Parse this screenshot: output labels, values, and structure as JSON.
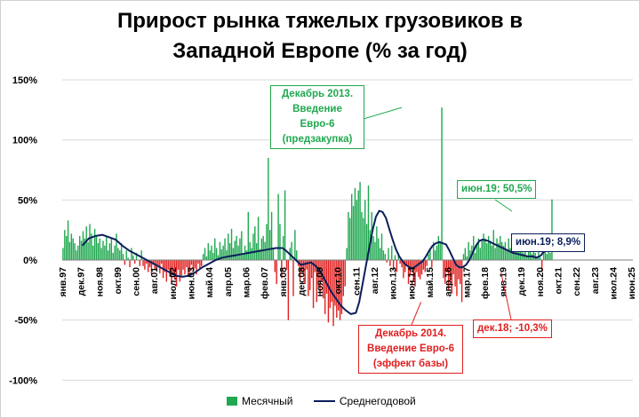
{
  "title_line1": "Прирост рынка тяжелых грузовиков в",
  "title_line2": "Западной Европе (% за год)",
  "legend": {
    "bars": "Месячный",
    "line": "Среднегодовой"
  },
  "colors": {
    "pos_bar": "#1fa84f",
    "neg_bar": "#e02020",
    "line": "#0b1f5c",
    "grid": "#d9d9d9"
  },
  "annotations": {
    "dec2013": [
      "Декабрь 2013.",
      "Введение Евро-6",
      "(предзакупка)"
    ],
    "dec2014": [
      "Декабрь 2014.",
      "Введение Евро-6",
      "(эффект базы)"
    ],
    "jun19_monthly": "июн.19; 50,5%",
    "jun19_avg": "июн.19; 8,9%",
    "dec18": "дек.18; -10,3%"
  },
  "chart_data": {
    "type": "bar+line",
    "title": "Прирост рынка тяжелых грузовиков в Западной Европе (% за год)",
    "ylim": [
      -100,
      150
    ],
    "yticks": [
      -100,
      -50,
      0,
      50,
      100,
      150
    ],
    "ytick_labels": [
      "-100%",
      "-50%",
      "0%",
      "50%",
      "100%",
      "150%"
    ],
    "x_start": "янв.97",
    "x_months": 342,
    "xtick_labels": [
      "янв.97",
      "дек.97",
      "ноя.98",
      "окт.99",
      "сен.00",
      "авг.01",
      "июл.02",
      "июн.03",
      "май.04",
      "апр.05",
      "мар.06",
      "фев.07",
      "янв.08",
      "дек.08",
      "ноя.09",
      "окт.10",
      "сен.11",
      "авг.12",
      "июл.13",
      "июн.14",
      "май.15",
      "апр.16",
      "мар.17",
      "фев.18",
      "янв.19",
      "дек.19",
      "ноя.20",
      "окт.21",
      "сен.22",
      "авг.23",
      "июл.24",
      "июн.25"
    ],
    "series": [
      {
        "name": "Месячный",
        "kind": "bar",
        "monthly_values": [
          10,
          25,
          20,
          33,
          15,
          22,
          18,
          14,
          8,
          12,
          20,
          16,
          24,
          18,
          28,
          15,
          30,
          22,
          12,
          26,
          20,
          14,
          18,
          10,
          16,
          12,
          20,
          8,
          14,
          18,
          6,
          12,
          22,
          10,
          8,
          14,
          5,
          -4,
          8,
          2,
          -6,
          10,
          4,
          -3,
          6,
          0,
          -5,
          8,
          -5,
          -8,
          -3,
          -10,
          -6,
          -12,
          -4,
          -8,
          -9,
          -6,
          -11,
          -3,
          -15,
          -10,
          -18,
          -8,
          -14,
          -20,
          -12,
          -16,
          -22,
          -8,
          -18,
          -13,
          -8,
          -12,
          -6,
          -14,
          -10,
          -4,
          -9,
          -7,
          -12,
          -3,
          -8,
          -5,
          5,
          10,
          3,
          14,
          8,
          12,
          6,
          18,
          10,
          4,
          15,
          9,
          12,
          18,
          8,
          22,
          14,
          26,
          10,
          16,
          20,
          12,
          18,
          24,
          5,
          12,
          8,
          40,
          15,
          10,
          22,
          28,
          14,
          36,
          9,
          18,
          20,
          15,
          30,
          85,
          25,
          40,
          10,
          -10,
          -20,
          55,
          30,
          -15,
          20,
          58,
          -8,
          -50,
          10,
          15,
          -30,
          25,
          8,
          -5,
          -18,
          -10,
          -12,
          -20,
          -8,
          -30,
          -25,
          -15,
          -40,
          -10,
          -35,
          -22,
          -28,
          -18,
          -32,
          -45,
          -28,
          -52,
          -40,
          -35,
          -55,
          -38,
          -48,
          -42,
          -50,
          -45,
          -30,
          -22,
          10,
          40,
          35,
          55,
          45,
          60,
          50,
          58,
          65,
          40,
          35,
          50,
          30,
          62,
          25,
          40,
          20,
          15,
          28,
          18,
          10,
          22,
          8,
          5,
          -2,
          10,
          -5,
          12,
          -8,
          4,
          -10,
          6,
          -3,
          -6,
          -15,
          -10,
          -5,
          -20,
          -12,
          -8,
          -18,
          -22,
          -10,
          -14,
          -16,
          -12,
          -8,
          -10,
          -5,
          5,
          10,
          -6,
          15,
          8,
          12,
          20,
          15,
          127,
          -15,
          -20,
          -10,
          -25,
          -18,
          -28,
          -12,
          -22,
          -30,
          -16,
          -20,
          -35,
          5,
          10,
          3,
          15,
          8,
          12,
          20,
          6,
          14,
          18,
          10,
          16,
          22,
          18,
          14,
          20,
          16,
          12,
          25,
          10,
          18,
          14,
          20,
          15,
          12,
          15,
          8,
          18,
          10,
          14,
          6,
          16,
          12,
          8,
          14,
          10,
          6,
          10,
          4,
          12,
          8,
          5,
          10,
          6,
          3,
          8,
          2,
          -10,
          8,
          12,
          5,
          10,
          6,
          50.5
        ]
      },
      {
        "name": "Среднегодовой",
        "kind": "line",
        "points": [
          [
            12,
            12
          ],
          [
            16,
            18
          ],
          [
            20,
            20
          ],
          [
            24,
            21
          ],
          [
            28,
            19
          ],
          [
            32,
            17
          ],
          [
            36,
            12
          ],
          [
            40,
            8
          ],
          [
            44,
            5
          ],
          [
            48,
            2
          ],
          [
            52,
            -1
          ],
          [
            56,
            -4
          ],
          [
            60,
            -7
          ],
          [
            64,
            -10
          ],
          [
            68,
            -13
          ],
          [
            72,
            -14
          ],
          [
            76,
            -13
          ],
          [
            80,
            -10
          ],
          [
            84,
            -6
          ],
          [
            88,
            -3
          ],
          [
            92,
            0
          ],
          [
            96,
            2
          ],
          [
            100,
            3
          ],
          [
            104,
            4
          ],
          [
            108,
            5
          ],
          [
            112,
            6
          ],
          [
            116,
            7
          ],
          [
            120,
            8
          ],
          [
            124,
            9
          ],
          [
            128,
            10
          ],
          [
            132,
            10
          ],
          [
            134,
            8
          ],
          [
            137,
            4
          ],
          [
            140,
            0
          ],
          [
            143,
            -4
          ],
          [
            146,
            -3
          ],
          [
            149,
            -2
          ],
          [
            152,
            -5
          ],
          [
            155,
            -10
          ],
          [
            158,
            -18
          ],
          [
            161,
            -26
          ],
          [
            164,
            -32
          ],
          [
            167,
            -38
          ],
          [
            170,
            -42
          ],
          [
            173,
            -45
          ],
          [
            176,
            -44
          ],
          [
            178,
            -35
          ],
          [
            180,
            -20
          ],
          [
            182,
            -5
          ],
          [
            184,
            10
          ],
          [
            186,
            25
          ],
          [
            188,
            36
          ],
          [
            190,
            41
          ],
          [
            192,
            40
          ],
          [
            194,
            35
          ],
          [
            196,
            26
          ],
          [
            198,
            17
          ],
          [
            200,
            9
          ],
          [
            202,
            3
          ],
          [
            204,
            -1
          ],
          [
            206,
            -4
          ],
          [
            208,
            -6
          ],
          [
            210,
            -7
          ],
          [
            212,
            -5
          ],
          [
            214,
            -3
          ],
          [
            216,
            -1
          ],
          [
            218,
            3
          ],
          [
            220,
            8
          ],
          [
            222,
            12
          ],
          [
            224,
            14
          ],
          [
            226,
            15
          ],
          [
            228,
            14
          ],
          [
            230,
            13
          ],
          [
            232,
            8
          ],
          [
            234,
            2
          ],
          [
            236,
            -4
          ],
          [
            238,
            -6
          ],
          [
            240,
            -6
          ],
          [
            242,
            -4
          ],
          [
            244,
            0
          ],
          [
            246,
            6
          ],
          [
            248,
            12
          ],
          [
            250,
            16
          ],
          [
            252,
            17
          ],
          [
            255,
            16
          ],
          [
            258,
            14
          ],
          [
            261,
            12
          ],
          [
            264,
            10
          ],
          [
            267,
            8
          ],
          [
            270,
            6
          ],
          [
            273,
            5
          ],
          [
            276,
            4
          ],
          [
            279,
            3
          ],
          [
            282,
            3
          ],
          [
            284,
            2
          ],
          [
            286,
            3
          ],
          [
            287,
            4
          ],
          [
            288,
            6
          ],
          [
            289,
            7
          ],
          [
            290,
            8.9
          ]
        ]
      }
    ]
  }
}
